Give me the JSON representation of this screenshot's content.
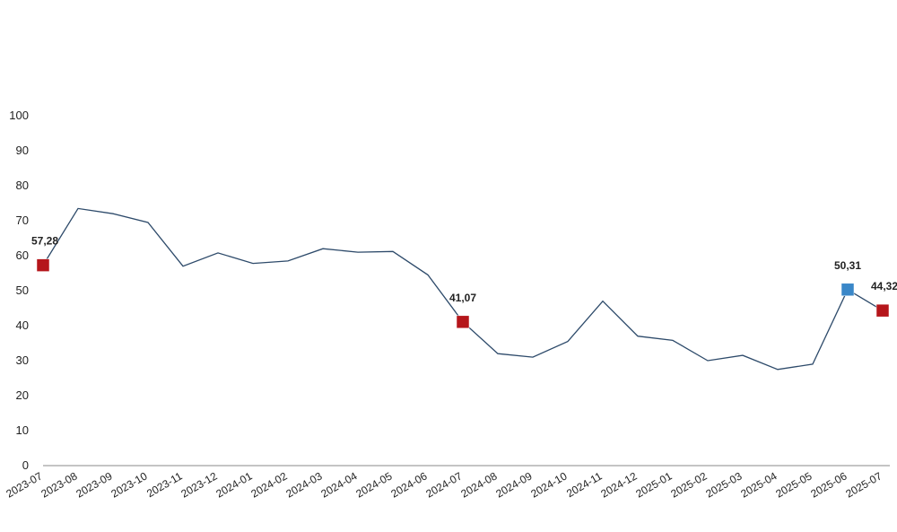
{
  "chart_data": {
    "type": "line",
    "title": "",
    "xlabel": "",
    "ylabel": "",
    "ylim": [
      0,
      100
    ],
    "yticks": [
      0,
      10,
      20,
      30,
      40,
      50,
      60,
      70,
      80,
      90,
      100
    ],
    "grid": false,
    "legend": "none",
    "categories": [
      "2023-07",
      "2023-08",
      "2023-09",
      "2023-10",
      "2023-11",
      "2023-12",
      "2024-01",
      "2024-02",
      "2024-03",
      "2024-04",
      "2024-05",
      "2024-06",
      "2024-07",
      "2024-08",
      "2024-09",
      "2024-10",
      "2024-11",
      "2024-12",
      "2025-01",
      "2025-02",
      "2025-03",
      "2025-04",
      "2025-05",
      "2025-06",
      "2025-07"
    ],
    "series": [
      {
        "values": [
          57.28,
          73.5,
          72.0,
          69.5,
          57.0,
          60.8,
          57.8,
          58.5,
          62.0,
          61.0,
          61.2,
          54.5,
          41.07,
          32.0,
          31.0,
          35.5,
          47.0,
          37.0,
          35.8,
          30.0,
          31.5,
          27.5,
          29.0,
          50.31,
          44.32
        ],
        "color": "#2d4a6a"
      }
    ],
    "highlights": [
      {
        "index": 0,
        "label": "57,28",
        "color": "#b5161b"
      },
      {
        "index": 12,
        "label": "41,07",
        "color": "#b5161b"
      },
      {
        "index": 23,
        "label": "50,31",
        "color": "#3a87c8"
      },
      {
        "index": 24,
        "label": "44,32",
        "color": "#b5161b"
      }
    ]
  }
}
